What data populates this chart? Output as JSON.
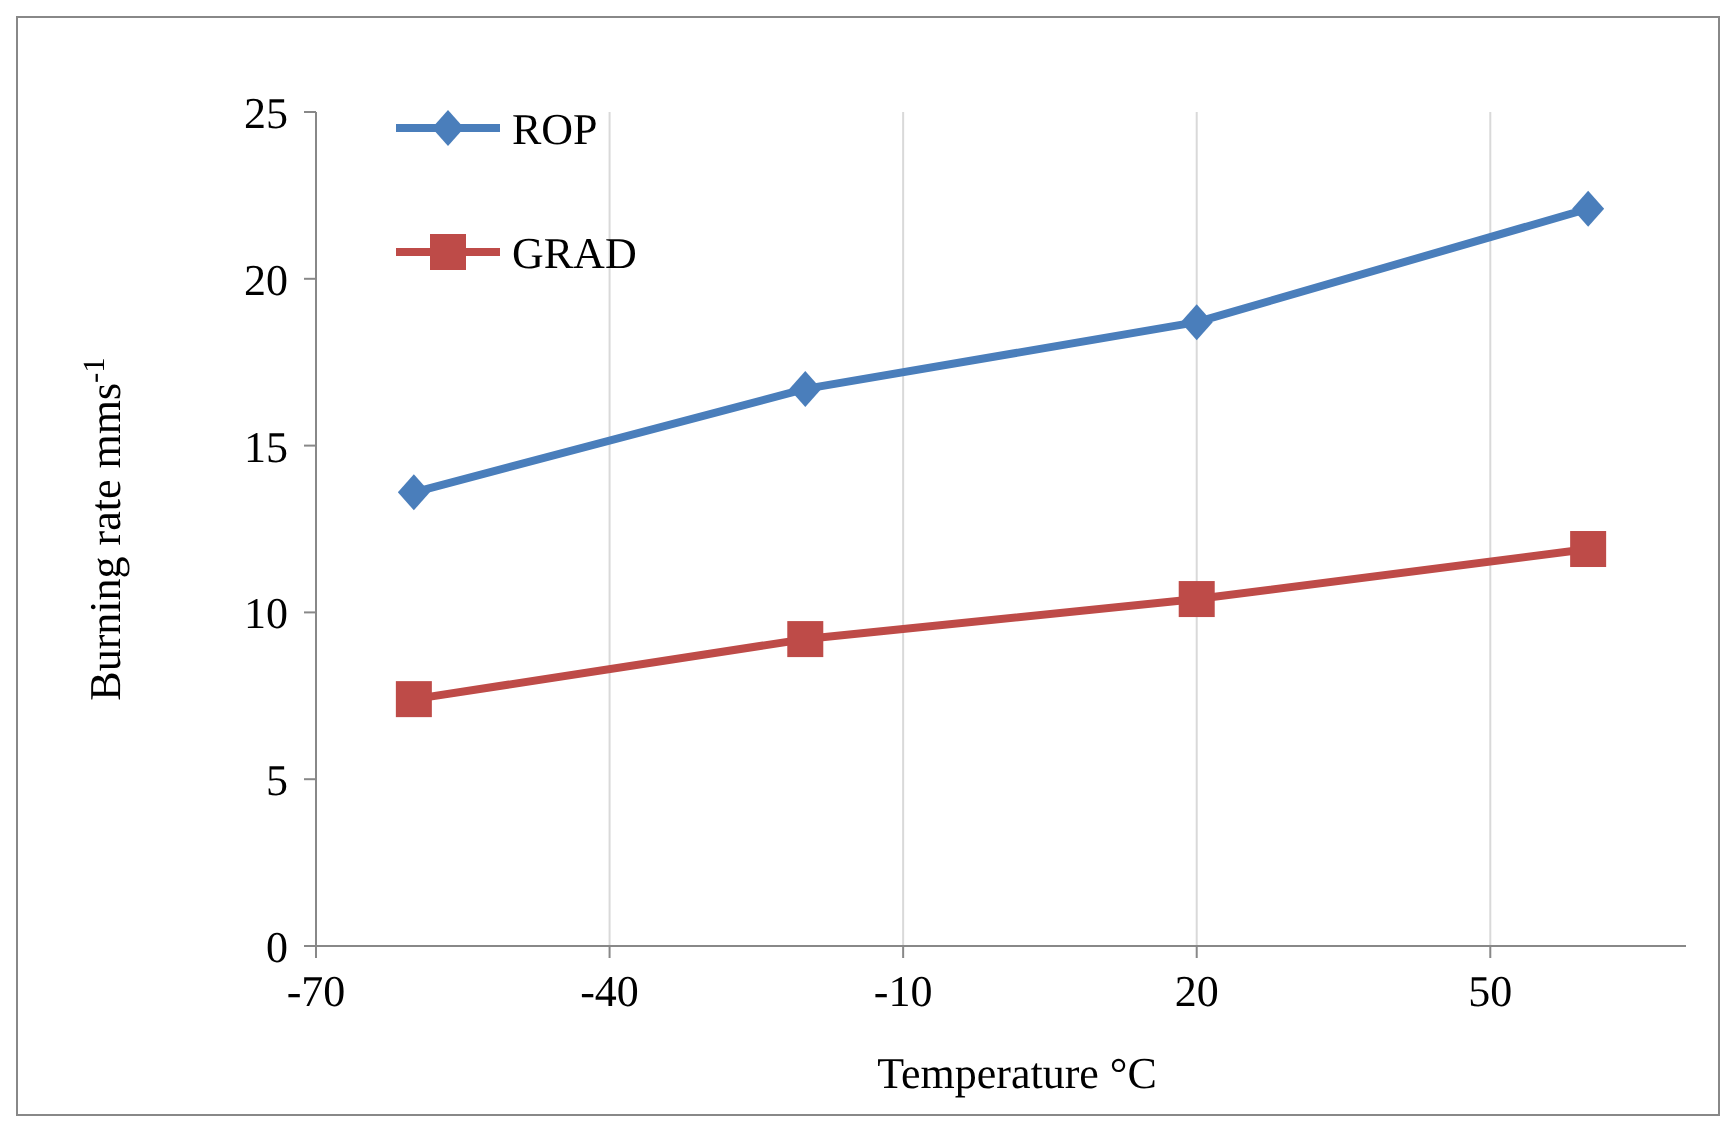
{
  "chart_data": {
    "type": "line",
    "xlabel": "Temperature   °C",
    "ylabel": "Burning rate mms$^{-1}$",
    "x": [
      -60,
      -20,
      20,
      60
    ],
    "series": [
      {
        "name": "ROP",
        "color": "#4a7ebb",
        "marker": "diamond",
        "values": [
          13.6,
          16.7,
          18.7,
          22.1
        ]
      },
      {
        "name": "GRAD",
        "color": "#be4b48",
        "marker": "square",
        "values": [
          7.4,
          9.2,
          10.4,
          11.9
        ]
      }
    ],
    "xlim": [
      -70,
      70
    ],
    "xticks": [
      -70,
      -40,
      -10,
      20,
      50
    ],
    "ylim": [
      0,
      25
    ],
    "yticks": [
      0,
      5,
      10,
      15,
      20,
      25
    ],
    "grid": "x",
    "legend": "top left"
  }
}
